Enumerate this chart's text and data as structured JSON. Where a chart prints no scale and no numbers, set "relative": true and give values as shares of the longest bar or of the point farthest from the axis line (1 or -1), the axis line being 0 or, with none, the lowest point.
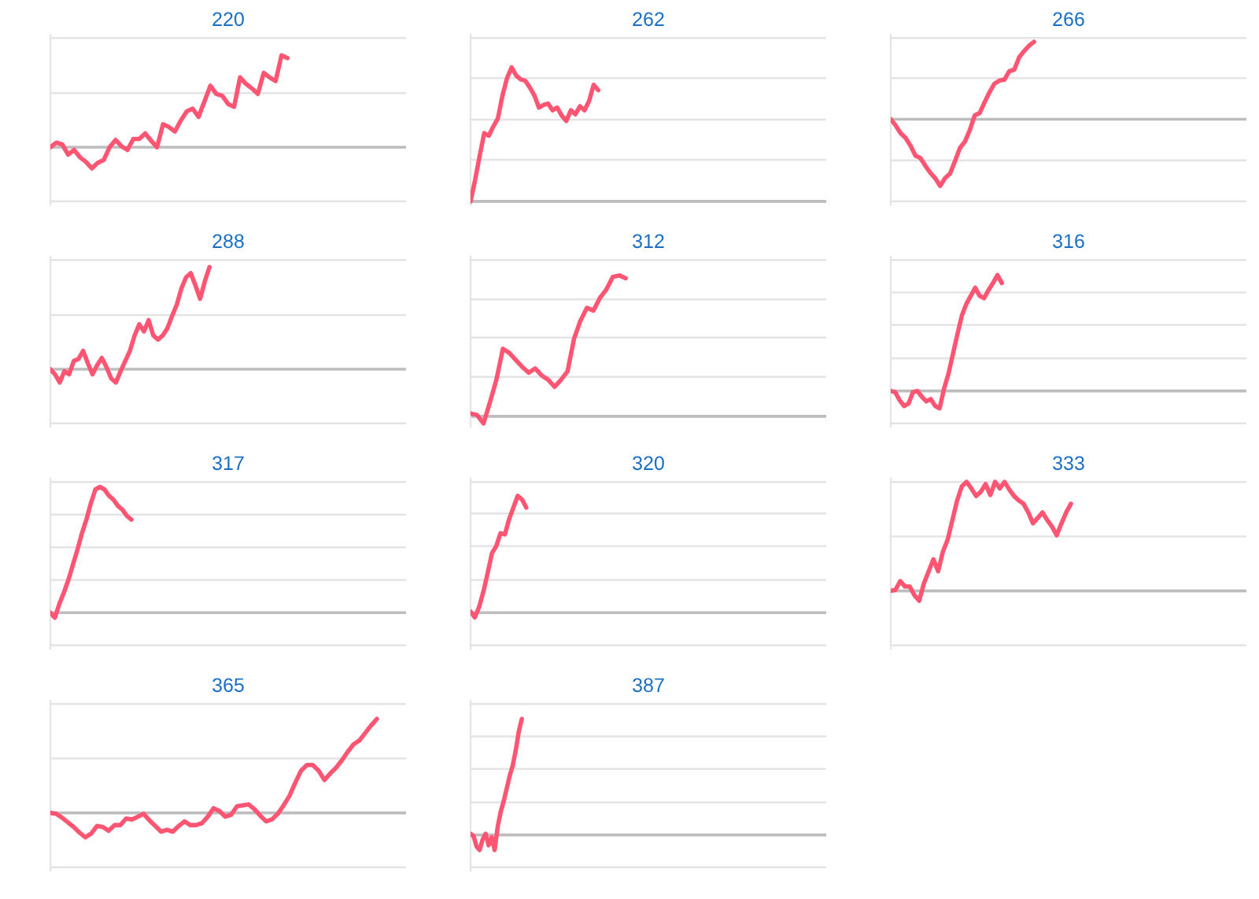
{
  "chart_data": [
    {
      "type": "line",
      "title": "220",
      "relative": true,
      "ref_lines": [
        {
          "axis": "y",
          "value": -0.59,
          "color": "#e4e4e4"
        },
        {
          "axis": "y",
          "value": 0.59,
          "color": "#e4e4e4"
        },
        {
          "axis": "y",
          "value": 1.19,
          "color": "#e4e4e4"
        }
      ],
      "categories": [
        null,
        null,
        null,
        null,
        null,
        null,
        null,
        null,
        null,
        null,
        null,
        null,
        null,
        null,
        null,
        null,
        null,
        null,
        null,
        null,
        null,
        null,
        null,
        null,
        null,
        null,
        null,
        null,
        null,
        null,
        null,
        null,
        null,
        null,
        null,
        null,
        null,
        null,
        null,
        null,
        null,
        null,
        null,
        null,
        null,
        null,
        null,
        null,
        null,
        null,
        null,
        null,
        null,
        null,
        null,
        null,
        null,
        null,
        null,
        null,
        null
      ],
      "series": [
        {
          "color": "#ff5572",
          "values": [
            0,
            0.05,
            0.03,
            -0.08,
            -0.03,
            -0.11,
            -0.16,
            -0.23,
            -0.17,
            -0.14,
            0,
            0.08,
            0.01,
            -0.03,
            0.09,
            0.09,
            0.15,
            0.07,
            0,
            0.25,
            0.22,
            0.17,
            0.29,
            0.39,
            0.42,
            0.33,
            0.5,
            0.67,
            0.58,
            0.56,
            0.47,
            0.44,
            0.76,
            0.69,
            0.64,
            0.58,
            0.81,
            0.76,
            0.72,
            1.0,
            0.97,
            null,
            null,
            null,
            null,
            null,
            null,
            null,
            null,
            null,
            null,
            null,
            null,
            null,
            null,
            null,
            null,
            null,
            null,
            null,
            null
          ]
        }
      ]
    },
    {
      "type": "line",
      "title": "262",
      "relative": true,
      "ref_lines": [
        {
          "axis": "y",
          "value": 0.31,
          "color": "#e4e4e4"
        },
        {
          "axis": "y",
          "value": 0.61,
          "color": "#e4e4e4"
        },
        {
          "axis": "y",
          "value": 0.92,
          "color": "#e4e4e4"
        },
        {
          "axis": "y",
          "value": 1.22,
          "color": "#e4e4e4"
        }
      ],
      "categories": [
        null,
        null,
        null,
        null,
        null,
        null,
        null,
        null,
        null,
        null,
        null,
        null,
        null,
        null,
        null,
        null,
        null,
        null,
        null,
        null,
        null,
        null,
        null,
        null,
        null,
        null,
        null,
        null,
        null,
        null,
        null,
        null,
        null,
        null,
        null,
        null,
        null,
        null,
        null,
        null,
        null,
        null,
        null,
        null,
        null,
        null,
        null,
        null,
        null,
        null,
        null,
        null,
        null,
        null,
        null,
        null,
        null,
        null,
        null,
        null,
        null,
        null,
        null,
        null,
        null,
        null,
        null,
        null,
        null,
        null,
        null,
        null,
        null,
        null,
        null,
        null,
        null,
        null,
        null
      ],
      "series": [
        {
          "color": "#ff5572",
          "values": [
            0,
            0.16,
            0.34,
            0.51,
            0.49,
            0.56,
            0.62,
            0.79,
            0.92,
            1.0,
            0.94,
            0.91,
            0.9,
            0.85,
            0.79,
            0.7,
            0.72,
            0.73,
            0.68,
            0.7,
            0.64,
            0.6,
            0.68,
            0.65,
            0.71,
            0.68,
            0.75,
            0.87,
            0.83,
            null,
            null,
            null,
            null,
            null,
            null,
            null,
            null,
            null,
            null,
            null,
            null,
            null,
            null,
            null,
            null,
            null,
            null,
            null,
            null,
            null,
            null,
            null,
            null,
            null,
            null,
            null,
            null,
            null,
            null,
            null,
            null,
            null,
            null,
            null,
            null,
            null,
            null,
            null,
            null,
            null,
            null,
            null,
            null,
            null,
            null,
            null,
            null,
            null,
            null
          ]
        }
      ]
    },
    {
      "type": "line",
      "title": "266",
      "relative": true,
      "ref_lines": [
        {
          "axis": "y",
          "value": -1.06,
          "color": "#e4e4e4"
        },
        {
          "axis": "y",
          "value": -0.53,
          "color": "#e4e4e4"
        },
        {
          "axis": "y",
          "value": 0.53,
          "color": "#e4e4e4"
        },
        {
          "axis": "y",
          "value": 1.05,
          "color": "#e4e4e4"
        }
      ],
      "categories": [
        null,
        null,
        null,
        null,
        null,
        null,
        null,
        null,
        null,
        null,
        null,
        null,
        null,
        null,
        null,
        null,
        null,
        null,
        null,
        null,
        null,
        null,
        null,
        null,
        null,
        null,
        null,
        null,
        null,
        null,
        null,
        null,
        null,
        null,
        null,
        null,
        null,
        null,
        null,
        null,
        null,
        null,
        null,
        null,
        null,
        null,
        null,
        null,
        null,
        null,
        null,
        null,
        null,
        null,
        null,
        null,
        null,
        null,
        null,
        null,
        null,
        null,
        null,
        null,
        null,
        null,
        null,
        null,
        null,
        null,
        null,
        null,
        null
      ],
      "series": [
        {
          "color": "#ff5572",
          "values": [
            0,
            -0.08,
            -0.18,
            -0.24,
            -0.34,
            -0.47,
            -0.5,
            -0.6,
            -0.69,
            -0.76,
            -0.86,
            -0.76,
            -0.7,
            -0.54,
            -0.37,
            -0.29,
            -0.14,
            0.05,
            0.08,
            0.22,
            0.35,
            0.46,
            0.5,
            0.51,
            0.62,
            0.64,
            0.8,
            0.88,
            0.95,
            1.0,
            null,
            null,
            null,
            null,
            null,
            null,
            null,
            null,
            null,
            null,
            null,
            null,
            null,
            null,
            null,
            null,
            null,
            null,
            null,
            null,
            null,
            null,
            null,
            null,
            null,
            null,
            null,
            null,
            null,
            null,
            null,
            null,
            null,
            null,
            null,
            null,
            null,
            null,
            null,
            null,
            null,
            null,
            null
          ]
        }
      ]
    },
    {
      "type": "line",
      "title": "288",
      "relative": true,
      "ref_lines": [
        {
          "axis": "y",
          "value": -0.53,
          "color": "#e4e4e4"
        },
        {
          "axis": "y",
          "value": 0.53,
          "color": "#e4e4e4"
        },
        {
          "axis": "y",
          "value": 1.07,
          "color": "#e4e4e4"
        }
      ],
      "categories": [
        null,
        null,
        null,
        null,
        null,
        null,
        null,
        null,
        null,
        null,
        null,
        null,
        null,
        null,
        null,
        null,
        null,
        null,
        null,
        null,
        null,
        null,
        null,
        null,
        null,
        null,
        null,
        null,
        null,
        null,
        null,
        null,
        null,
        null,
        null,
        null,
        null,
        null,
        null,
        null,
        null,
        null,
        null,
        null,
        null,
        null,
        null,
        null,
        null,
        null,
        null,
        null,
        null,
        null,
        null,
        null,
        null,
        null,
        null,
        null,
        null,
        null,
        null,
        null,
        null,
        null,
        null,
        null,
        null,
        null,
        null,
        null,
        null,
        null,
        null,
        null,
        null
      ],
      "series": [
        {
          "color": "#ff5572",
          "values": [
            0,
            -0.05,
            -0.13,
            -0.02,
            -0.05,
            0.08,
            0.1,
            0.18,
            0.06,
            -0.05,
            0.04,
            0.11,
            0.02,
            -0.09,
            -0.13,
            -0.02,
            0.08,
            0.18,
            0.33,
            0.44,
            0.37,
            0.48,
            0.33,
            0.29,
            0.33,
            0.4,
            0.52,
            0.63,
            0.79,
            0.9,
            0.94,
            0.82,
            0.69,
            0.86,
            1.0,
            null,
            null,
            null,
            null,
            null,
            null,
            null,
            null,
            null,
            null,
            null,
            null,
            null,
            null,
            null,
            null,
            null,
            null,
            null,
            null,
            null,
            null,
            null,
            null,
            null,
            null,
            null,
            null,
            null,
            null,
            null,
            null,
            null,
            null,
            null,
            null,
            null,
            null,
            null,
            null,
            null,
            null
          ]
        }
      ]
    },
    {
      "type": "line",
      "title": "312",
      "relative": true,
      "ref_lines": [
        {
          "axis": "y",
          "value": 0.28,
          "color": "#e4e4e4"
        },
        {
          "axis": "y",
          "value": 0.56,
          "color": "#e4e4e4"
        },
        {
          "axis": "y",
          "value": 0.83,
          "color": "#e4e4e4"
        },
        {
          "axis": "y",
          "value": 1.11,
          "color": "#e4e4e4"
        }
      ],
      "categories": [
        null,
        null,
        null,
        null,
        null,
        null,
        null,
        null,
        null,
        null,
        null,
        null,
        null,
        null,
        null,
        null,
        null,
        null,
        null,
        null,
        null,
        null,
        null,
        null,
        null,
        null,
        null,
        null,
        null,
        null,
        null,
        null,
        null,
        null,
        null,
        null,
        null,
        null,
        null,
        null,
        null,
        null,
        null,
        null,
        null,
        null,
        null,
        null,
        null,
        null,
        null,
        null,
        null,
        null,
        null,
        null
      ],
      "series": [
        {
          "color": "#ff5572",
          "values": [
            0.02,
            0.01,
            -0.05,
            0.1,
            0.26,
            0.48,
            0.45,
            0.4,
            0.35,
            0.31,
            0.34,
            0.29,
            0.26,
            0.21,
            0.26,
            0.32,
            0.55,
            0.68,
            0.77,
            0.75,
            0.84,
            0.9,
            0.99,
            1.0,
            0.98,
            null,
            null,
            null,
            null,
            null,
            null,
            null,
            null,
            null,
            null,
            null,
            null,
            null,
            null,
            null,
            null,
            null,
            null,
            null,
            null,
            null,
            null,
            null,
            null,
            null,
            null,
            null,
            null,
            null,
            null,
            null
          ]
        }
      ]
    },
    {
      "type": "line",
      "title": "316",
      "relative": true,
      "ref_lines": [
        {
          "axis": "y",
          "value": -0.28,
          "color": "#e4e4e4"
        },
        {
          "axis": "y",
          "value": 0.28,
          "color": "#e4e4e4"
        },
        {
          "axis": "y",
          "value": 0.57,
          "color": "#e4e4e4"
        },
        {
          "axis": "y",
          "value": 0.85,
          "color": "#e4e4e4"
        },
        {
          "axis": "y",
          "value": 1.13,
          "color": "#e4e4e4"
        }
      ],
      "categories": [
        null,
        null,
        null,
        null,
        null,
        null,
        null,
        null,
        null,
        null,
        null,
        null,
        null,
        null,
        null,
        null,
        null,
        null,
        null,
        null,
        null,
        null,
        null,
        null,
        null,
        null,
        null,
        null,
        null,
        null,
        null,
        null,
        null,
        null,
        null,
        null,
        null,
        null,
        null,
        null,
        null,
        null,
        null,
        null,
        null,
        null,
        null,
        null,
        null,
        null,
        null,
        null,
        null,
        null,
        null,
        null,
        null,
        null,
        null,
        null,
        null,
        null,
        null,
        null,
        null,
        null,
        null,
        null,
        null,
        null,
        null,
        null,
        null,
        null,
        null,
        null,
        null,
        null,
        null,
        null,
        null
      ],
      "series": [
        {
          "color": "#ff5572",
          "values": [
            0,
            -0.01,
            -0.08,
            -0.13,
            -0.11,
            -0.01,
            0,
            -0.05,
            -0.09,
            -0.07,
            -0.13,
            -0.15,
            0.02,
            0.15,
            0.32,
            0.49,
            0.65,
            0.75,
            0.82,
            0.89,
            0.82,
            0.8,
            0.87,
            0.93,
            1.0,
            0.93,
            null,
            null,
            null,
            null,
            null,
            null,
            null,
            null,
            null,
            null,
            null,
            null,
            null,
            null,
            null,
            null,
            null,
            null,
            null,
            null,
            null,
            null,
            null,
            null,
            null,
            null,
            null,
            null,
            null,
            null,
            null,
            null,
            null,
            null,
            null,
            null,
            null,
            null,
            null,
            null,
            null,
            null,
            null,
            null,
            null,
            null,
            null,
            null,
            null,
            null,
            null,
            null,
            null,
            null,
            null
          ]
        }
      ]
    },
    {
      "type": "line",
      "title": "317",
      "relative": true,
      "ref_lines": [
        {
          "axis": "y",
          "value": -0.26,
          "color": "#e4e4e4"
        },
        {
          "axis": "y",
          "value": 0.26,
          "color": "#e4e4e4"
        },
        {
          "axis": "y",
          "value": 0.52,
          "color": "#e4e4e4"
        },
        {
          "axis": "y",
          "value": 0.78,
          "color": "#e4e4e4"
        },
        {
          "axis": "y",
          "value": 1.04,
          "color": "#e4e4e4"
        }
      ],
      "categories": [
        null,
        null,
        null,
        null,
        null,
        null,
        null,
        null,
        null,
        null,
        null,
        null,
        null,
        null,
        null,
        null,
        null,
        null,
        null,
        null,
        null,
        null,
        null,
        null,
        null,
        null,
        null,
        null,
        null,
        null,
        null,
        null,
        null,
        null,
        null,
        null,
        null,
        null,
        null,
        null,
        null,
        null,
        null,
        null,
        null,
        null,
        null,
        null,
        null,
        null,
        null,
        null,
        null,
        null,
        null,
        null,
        null,
        null,
        null,
        null,
        null,
        null,
        null,
        null,
        null,
        null,
        null,
        null,
        null,
        null,
        null,
        null,
        null,
        null,
        null,
        null,
        null,
        null,
        null,
        null
      ],
      "series": [
        {
          "color": "#ff5572",
          "values": [
            0,
            -0.04,
            0.07,
            0.16,
            0.26,
            0.38,
            0.5,
            0.63,
            0.74,
            0.87,
            0.98,
            1.0,
            0.98,
            0.93,
            0.9,
            0.85,
            0.82,
            0.77,
            0.74,
            null,
            null,
            null,
            null,
            null,
            null,
            null,
            null,
            null,
            null,
            null,
            null,
            null,
            null,
            null,
            null,
            null,
            null,
            null,
            null,
            null,
            null,
            null,
            null,
            null,
            null,
            null,
            null,
            null,
            null,
            null,
            null,
            null,
            null,
            null,
            null,
            null,
            null,
            null,
            null,
            null,
            null,
            null,
            null,
            null,
            null,
            null,
            null,
            null,
            null,
            null,
            null,
            null,
            null,
            null,
            null,
            null,
            null,
            null,
            null,
            null
          ]
        }
      ]
    },
    {
      "type": "line",
      "title": "320",
      "relative": true,
      "ref_lines": [
        {
          "axis": "y",
          "value": -0.28,
          "color": "#e4e4e4"
        },
        {
          "axis": "y",
          "value": 0.28,
          "color": "#e4e4e4"
        },
        {
          "axis": "y",
          "value": 0.57,
          "color": "#e4e4e4"
        },
        {
          "axis": "y",
          "value": 0.85,
          "color": "#e4e4e4"
        },
        {
          "axis": "y",
          "value": 1.12,
          "color": "#e4e4e4"
        }
      ],
      "categories": [
        null,
        null,
        null,
        null,
        null,
        null,
        null,
        null,
        null,
        null,
        null,
        null,
        null,
        null,
        null,
        null,
        null,
        null,
        null,
        null,
        null,
        null,
        null,
        null,
        null,
        null,
        null,
        null,
        null,
        null,
        null,
        null,
        null,
        null,
        null,
        null,
        null,
        null,
        null,
        null,
        null,
        null,
        null,
        null,
        null,
        null,
        null,
        null,
        null,
        null,
        null,
        null,
        null,
        null,
        null,
        null,
        null,
        null,
        null,
        null,
        null,
        null,
        null,
        null,
        null,
        null,
        null,
        null,
        null,
        null,
        null,
        null,
        null,
        null,
        null,
        null,
        null,
        null,
        null,
        null,
        null,
        null,
        null,
        null
      ],
      "series": [
        {
          "color": "#ff5572",
          "values": [
            0.01,
            -0.04,
            0.05,
            0.18,
            0.34,
            0.51,
            0.57,
            0.68,
            0.67,
            0.8,
            0.9,
            1.0,
            0.97,
            0.9,
            null,
            null,
            null,
            null,
            null,
            null,
            null,
            null,
            null,
            null,
            null,
            null,
            null,
            null,
            null,
            null,
            null,
            null,
            null,
            null,
            null,
            null,
            null,
            null,
            null,
            null,
            null,
            null,
            null,
            null,
            null,
            null,
            null,
            null,
            null,
            null,
            null,
            null,
            null,
            null,
            null,
            null,
            null,
            null,
            null,
            null,
            null,
            null,
            null,
            null,
            null,
            null,
            null,
            null,
            null,
            null,
            null,
            null,
            null,
            null,
            null,
            null,
            null,
            null,
            null,
            null,
            null,
            null,
            null,
            null
          ]
        }
      ]
    },
    {
      "type": "line",
      "title": "333",
      "relative": true,
      "ref_lines": [
        {
          "axis": "y",
          "value": -0.5,
          "color": "#e4e4e4"
        },
        {
          "axis": "y",
          "value": 0.5,
          "color": "#e4e4e4"
        },
        {
          "axis": "y",
          "value": 1.0,
          "color": "#e4e4e4"
        }
      ],
      "categories": [
        null,
        null,
        null,
        null,
        null,
        null,
        null,
        null,
        null,
        null,
        null,
        null,
        null,
        null,
        null,
        null,
        null,
        null,
        null,
        null,
        null,
        null,
        null,
        null,
        null,
        null,
        null,
        null,
        null,
        null,
        null,
        null,
        null,
        null,
        null,
        null,
        null,
        null,
        null,
        null,
        null,
        null,
        null,
        null,
        null,
        null,
        null,
        null,
        null,
        null,
        null,
        null,
        null,
        null,
        null,
        null,
        null,
        null,
        null,
        null,
        null,
        null,
        null,
        null,
        null,
        null,
        null,
        null,
        null,
        null,
        null,
        null,
        null,
        null,
        null,
        null
      ],
      "series": [
        {
          "color": "#ff5572",
          "values": [
            0,
            0.01,
            0.09,
            0.04,
            0.04,
            -0.04,
            -0.09,
            0.07,
            0.18,
            0.29,
            0.18,
            0.36,
            0.47,
            0.65,
            0.83,
            0.96,
            1.0,
            0.94,
            0.87,
            0.91,
            0.98,
            0.88,
            1.0,
            0.94,
            1.0,
            0.93,
            0.87,
            0.83,
            0.8,
            0.72,
            0.62,
            0.67,
            0.72,
            0.65,
            0.59,
            0.51,
            0.62,
            0.72,
            0.8,
            null,
            null,
            null,
            null,
            null,
            null,
            null,
            null,
            null,
            null,
            null,
            null,
            null,
            null,
            null,
            null,
            null,
            null,
            null,
            null,
            null,
            null,
            null,
            null,
            null,
            null,
            null,
            null,
            null,
            null,
            null,
            null,
            null,
            null,
            null,
            null,
            null
          ]
        }
      ]
    },
    {
      "type": "line",
      "title": "365",
      "relative": true,
      "ref_lines": [
        {
          "axis": "y",
          "value": -0.58,
          "color": "#e4e4e4"
        },
        {
          "axis": "y",
          "value": 0.58,
          "color": "#e4e4e4"
        },
        {
          "axis": "y",
          "value": 1.16,
          "color": "#e4e4e4"
        }
      ],
      "categories": [
        null,
        null,
        null,
        null,
        null,
        null,
        null,
        null,
        null,
        null,
        null,
        null,
        null,
        null,
        null,
        null,
        null,
        null,
        null,
        null,
        null,
        null,
        null,
        null,
        null,
        null,
        null,
        null,
        null,
        null,
        null,
        null,
        null,
        null,
        null,
        null,
        null,
        null,
        null,
        null,
        null,
        null,
        null,
        null,
        null,
        null,
        null,
        null,
        null,
        null,
        null,
        null,
        null,
        null,
        null,
        null,
        null,
        null,
        null,
        null,
        null,
        null
      ],
      "series": [
        {
          "color": "#ff5572",
          "values": [
            0,
            -0.01,
            -0.05,
            -0.1,
            -0.15,
            -0.21,
            -0.26,
            -0.22,
            -0.14,
            -0.15,
            -0.19,
            -0.13,
            -0.13,
            -0.06,
            -0.07,
            -0.04,
            -0.01,
            -0.08,
            -0.14,
            -0.2,
            -0.18,
            -0.2,
            -0.14,
            -0.09,
            -0.13,
            -0.13,
            -0.11,
            -0.04,
            0.05,
            0.02,
            -0.04,
            -0.02,
            0.07,
            0.08,
            0.09,
            0.04,
            -0.03,
            -0.09,
            -0.07,
            -0.01,
            0.08,
            0.18,
            0.32,
            0.45,
            0.51,
            0.51,
            0.45,
            0.35,
            0.42,
            0.48,
            0.56,
            0.65,
            0.73,
            0.77,
            0.85,
            0.93,
            1.0,
            null,
            null,
            null,
            null,
            null
          ]
        }
      ]
    },
    {
      "type": "line",
      "title": "387",
      "relative": true,
      "ref_lines": [
        {
          "axis": "y",
          "value": -0.28,
          "color": "#e4e4e4"
        },
        {
          "axis": "y",
          "value": 0.28,
          "color": "#e4e4e4"
        },
        {
          "axis": "y",
          "value": 0.57,
          "color": "#e4e4e4"
        },
        {
          "axis": "y",
          "value": 0.85,
          "color": "#e4e4e4"
        },
        {
          "axis": "y",
          "value": 1.13,
          "color": "#e4e4e4"
        }
      ],
      "categories": [
        null,
        null,
        null,
        null,
        null,
        null,
        null,
        null,
        null,
        null,
        null,
        null,
        null,
        null,
        null,
        null,
        null,
        null,
        null,
        null,
        null,
        null,
        null,
        null,
        null,
        null,
        null,
        null,
        null,
        null,
        null,
        null,
        null,
        null,
        null,
        null,
        null,
        null,
        null,
        null,
        null,
        null,
        null,
        null,
        null,
        null,
        null,
        null,
        null,
        null,
        null,
        null,
        null,
        null,
        null,
        null,
        null,
        null,
        null,
        null,
        null,
        null,
        null,
        null,
        null,
        null,
        null,
        null,
        null,
        null,
        null,
        null,
        null,
        null,
        null,
        null,
        null,
        null,
        null,
        null,
        null,
        null,
        null,
        null,
        null,
        null,
        null,
        null,
        null,
        null,
        null,
        null,
        null,
        null,
        null,
        null,
        null,
        null,
        null,
        null,
        null,
        null,
        null,
        null,
        null,
        null,
        null,
        null,
        null,
        null,
        null,
        null,
        null,
        null,
        null,
        null,
        null,
        null,
        null
      ],
      "series": [
        {
          "color": "#ff5572",
          "values": [
            0.01,
            -0.01,
            -0.1,
            -0.13,
            -0.04,
            0.01,
            -0.09,
            -0.02,
            -0.13,
            0.07,
            0.2,
            0.29,
            0.4,
            0.51,
            0.6,
            0.73,
            0.89,
            1.0,
            null,
            null,
            null,
            null,
            null,
            null,
            null,
            null,
            null,
            null,
            null,
            null,
            null,
            null,
            null,
            null,
            null,
            null,
            null,
            null,
            null,
            null,
            null,
            null,
            null,
            null,
            null,
            null,
            null,
            null,
            null,
            null,
            null,
            null,
            null,
            null,
            null,
            null,
            null,
            null,
            null,
            null,
            null,
            null,
            null,
            null,
            null,
            null,
            null,
            null,
            null,
            null,
            null,
            null,
            null,
            null,
            null,
            null,
            null,
            null,
            null,
            null,
            null,
            null,
            null,
            null,
            null,
            null,
            null,
            null,
            null,
            null,
            null,
            null,
            null,
            null,
            null,
            null,
            null,
            null,
            null,
            null,
            null,
            null,
            null,
            null,
            null,
            null,
            null,
            null,
            null,
            null,
            null,
            null,
            null,
            null,
            null,
            null,
            null,
            null,
            null
          ]
        }
      ]
    }
  ]
}
